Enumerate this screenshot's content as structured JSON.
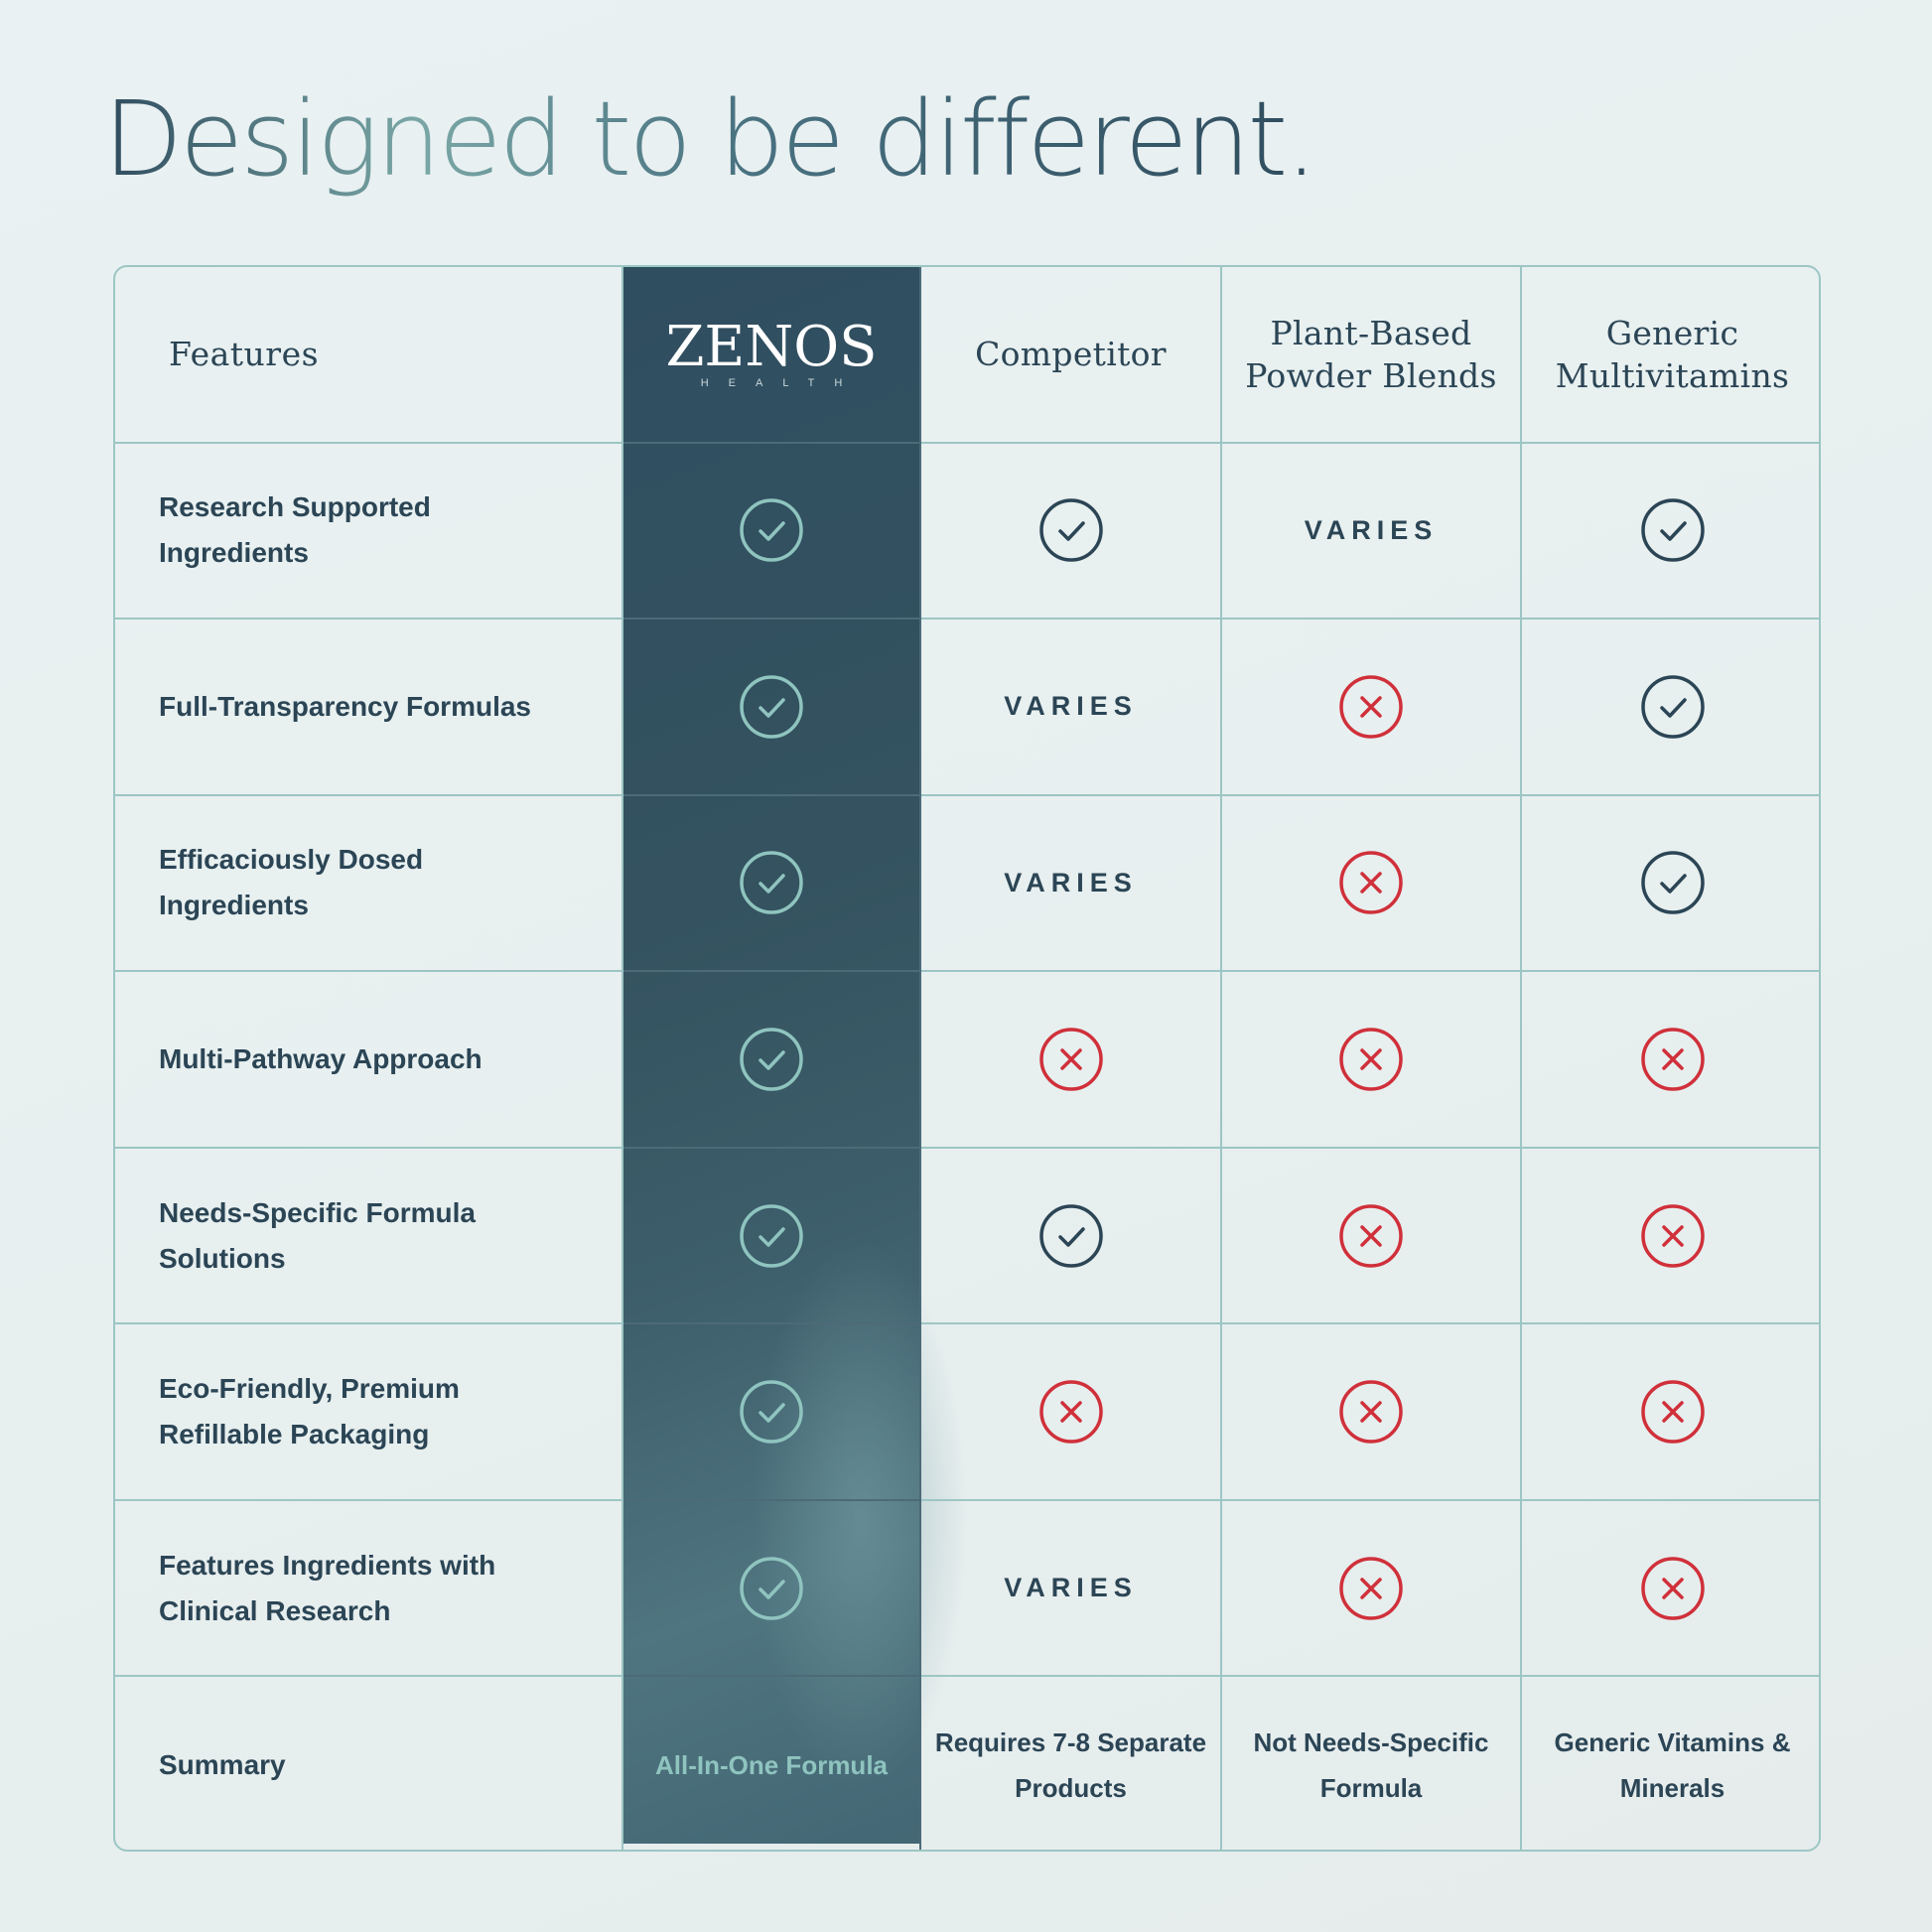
{
  "title": "Designed to be different.",
  "table": {
    "features_header": "Features",
    "brand": {
      "name": "ZENOS",
      "sub": "HEALTH"
    },
    "columns": [
      {
        "key": "competitor",
        "header": "Competitor"
      },
      {
        "key": "plant",
        "header": "Plant-Based\nPowder Blends"
      },
      {
        "key": "generic",
        "header": "Generic\nMultivitamins"
      }
    ],
    "rows": [
      {
        "feature": "Research Supported Ingredients",
        "zenos": "check",
        "competitor": "check",
        "plant": "VARIES",
        "generic": "check"
      },
      {
        "feature": "Full-Transparency Formulas",
        "zenos": "check",
        "competitor": "VARIES",
        "plant": "cross",
        "generic": "check"
      },
      {
        "feature": "Efficaciously Dosed Ingredients",
        "zenos": "check",
        "competitor": "VARIES",
        "plant": "cross",
        "generic": "check"
      },
      {
        "feature": "Multi-Pathway Approach",
        "zenos": "check",
        "competitor": "cross",
        "plant": "cross",
        "generic": "cross"
      },
      {
        "feature": "Needs-Specific Formula Solutions",
        "zenos": "check",
        "competitor": "check",
        "plant": "cross",
        "generic": "cross"
      },
      {
        "feature": "Eco-Friendly, Premium Refillable Packaging",
        "zenos": "check",
        "competitor": "cross",
        "plant": "cross",
        "generic": "cross"
      },
      {
        "feature": "Features Ingredients with Clinical Research",
        "zenos": "check",
        "competitor": "VARIES",
        "plant": "cross",
        "generic": "cross"
      }
    ],
    "summary": {
      "label": "Summary",
      "zenos": "All-In-One Formula",
      "competitor": "Requires 7-8 Separate Products",
      "plant": "Not Needs-Specific Formula",
      "generic": "Generic Vitamins & Minerals"
    }
  },
  "icons": {
    "check": "check-circle-icon",
    "cross": "x-circle-icon"
  },
  "colors": {
    "zenos_column": "#34525f",
    "zenos_check": "#8fc4bf",
    "check": "#2b4555",
    "cross": "#d0303a",
    "text": "#2b4555",
    "border": "#9cc6c4"
  }
}
